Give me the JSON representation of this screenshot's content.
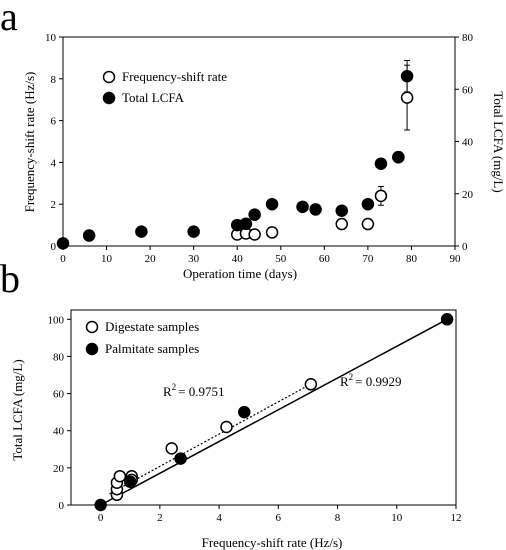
{
  "chart_data": [
    {
      "panel": "a",
      "type": "scatter",
      "xlabel": "Operation time (days)",
      "ylabel": "Frequency-shift rate (Hz/s)",
      "y2label": "Total LCFA (mg/L)",
      "xlim": [
        0,
        90
      ],
      "ylim": [
        0,
        10
      ],
      "y2lim": [
        0,
        80
      ],
      "xticks": [
        "0",
        "10",
        "20",
        "30",
        "40",
        "50",
        "60",
        "70",
        "80",
        "90"
      ],
      "yticks": [
        "0",
        "2",
        "4",
        "6",
        "8",
        "10"
      ],
      "y2ticks": [
        "0",
        "20",
        "40",
        "60",
        "80"
      ],
      "grid": false,
      "legend": "top-left",
      "series": [
        {
          "name": "Frequency-shift rate",
          "marker": "open-circle",
          "axis": "left",
          "points": [
            {
              "x": 40,
              "y": 0.55
            },
            {
              "x": 42,
              "y": 0.6
            },
            {
              "x": 44,
              "y": 0.55
            },
            {
              "x": 48,
              "y": 0.65
            },
            {
              "x": 64,
              "y": 1.05
            },
            {
              "x": 70,
              "y": 1.05
            },
            {
              "x": 73,
              "y": 2.4,
              "err": 0.45
            },
            {
              "x": 77,
              "y": 4.25,
              "err": 0.2
            },
            {
              "x": 79,
              "y": 7.1,
              "err": 1.55
            }
          ]
        },
        {
          "name": "Total LCFA",
          "marker": "filled-circle",
          "axis": "right",
          "points": [
            {
              "x": 0,
              "y": 1
            },
            {
              "x": 6,
              "y": 4
            },
            {
              "x": 18,
              "y": 5.5
            },
            {
              "x": 30,
              "y": 5.5
            },
            {
              "x": 40,
              "y": 8
            },
            {
              "x": 42,
              "y": 8.5
            },
            {
              "x": 44,
              "y": 12
            },
            {
              "x": 48,
              "y": 16
            },
            {
              "x": 55,
              "y": 15
            },
            {
              "x": 58,
              "y": 14
            },
            {
              "x": 64,
              "y": 13.5
            },
            {
              "x": 70,
              "y": 16
            },
            {
              "x": 73,
              "y": 31.5
            },
            {
              "x": 77,
              "y": 34
            },
            {
              "x": 79,
              "y": 65,
              "err": 6
            }
          ]
        }
      ]
    },
    {
      "panel": "b",
      "type": "scatter",
      "xlabel": "Frequency-shift rate (Hz/s)",
      "ylabel": "Total LCFA (mg/L)",
      "xlim": [
        -1,
        12
      ],
      "ylim": [
        0,
        105
      ],
      "xticks": [
        "0",
        "2",
        "4",
        "6",
        "8",
        "10",
        "12"
      ],
      "yticks": [
        "0",
        "20",
        "40",
        "60",
        "80",
        "100"
      ],
      "grid": false,
      "legend": "top-left",
      "series": [
        {
          "name": "Digestate samples",
          "marker": "open-circle",
          "points": [
            {
              "x": 0.55,
              "y": 5.5
            },
            {
              "x": 0.55,
              "y": 8.5
            },
            {
              "x": 0.55,
              "y": 12
            },
            {
              "x": 0.65,
              "y": 15.5
            },
            {
              "x": 1.05,
              "y": 15.5
            },
            {
              "x": 1.05,
              "y": 13.5
            },
            {
              "x": 2.4,
              "y": 30.5
            },
            {
              "x": 4.25,
              "y": 42
            },
            {
              "x": 7.1,
              "y": 65
            }
          ],
          "fit": {
            "r2_label": "R",
            "r2_sup": "2",
            "r2_value": "= 0.9751",
            "from": [
              0.3,
              6
            ],
            "to": [
              7.2,
              66
            ]
          }
        },
        {
          "name": "Palmitate samples",
          "marker": "filled-circle",
          "points": [
            {
              "x": 0,
              "y": 0
            },
            {
              "x": 1.0,
              "y": 12.5
            },
            {
              "x": 2.7,
              "y": 25
            },
            {
              "x": 4.85,
              "y": 50
            },
            {
              "x": 11.7,
              "y": 100
            }
          ],
          "fit": {
            "r2_label": "R",
            "r2_sup": "2",
            "r2_value": "= 0.9929",
            "from": [
              0,
              0
            ],
            "to": [
              11.7,
              100
            ]
          }
        }
      ]
    }
  ]
}
